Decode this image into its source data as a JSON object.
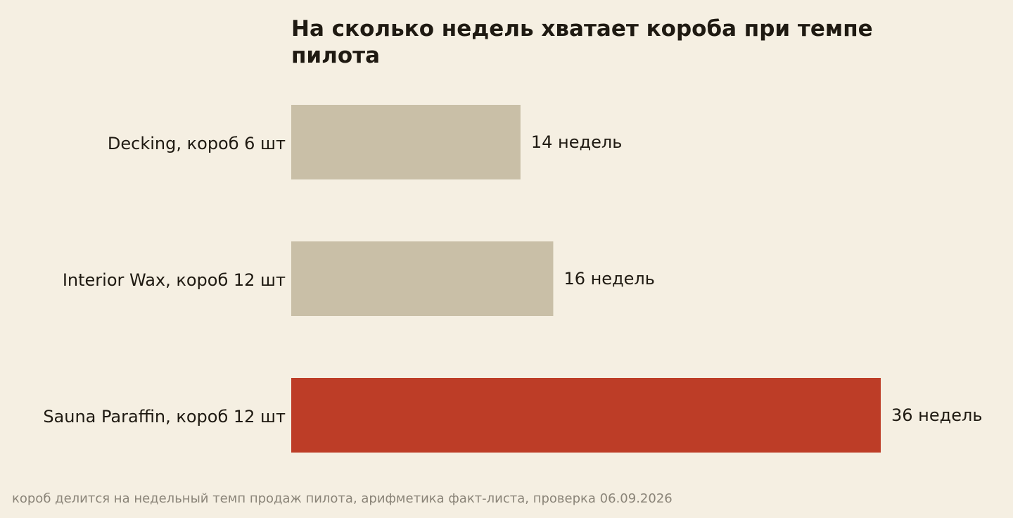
{
  "chart_data": {
    "type": "bar",
    "orientation": "horizontal",
    "title_lines": [
      "На сколько недель хватает короба при темпе",
      "пилота"
    ],
    "categories": [
      "Decking, короб 6 шт",
      "Interior Wax, короб 12 шт",
      "Sauna Paraffin, короб 12 шт"
    ],
    "values": [
      14,
      16,
      36
    ],
    "value_labels": [
      "14 недель",
      "16 недель",
      "36 недель"
    ],
    "xlim": [
      0,
      36
    ],
    "grid": false,
    "colors": {
      "default": "#c9bfa7",
      "highlight": "#bd3d27",
      "background": "#f5efe2"
    },
    "highlight_index": 2,
    "footnote": "короб делится на недельный темп продаж пилота, арифметика факт-листа, проверка 06.09.2026"
  }
}
